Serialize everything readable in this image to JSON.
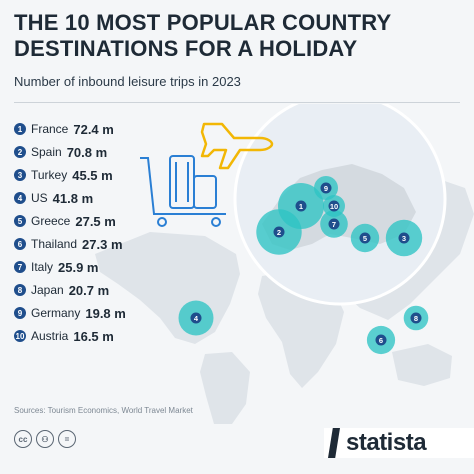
{
  "header": {
    "title": "THE 10 MOST POPULAR COUNTRY DESTINATIONS FOR A HOLIDAY",
    "subtitle": "Number of inbound leisure trips in 2023"
  },
  "footer": {
    "sources": "Sources: Tourism Economics, World Travel Market",
    "logo_text": "statista"
  },
  "colors": {
    "title": "#1e2a36",
    "badge": "#1f4e8c",
    "bubble": "#2ec4c4",
    "map_land": "#dfe4e9",
    "map_highlight_circle": "#e9eef4",
    "plane_icon": "#f2b705",
    "luggage_icon": "#2a7fd4"
  },
  "icons": [
    "airplane-icon",
    "luggage-cart-icon",
    "cc-icon",
    "attribution-icon",
    "no-derivatives-icon",
    "statista-logo"
  ],
  "chart_data": {
    "type": "bubble-map",
    "unit": "m",
    "categories": [
      "France",
      "Spain",
      "Turkey",
      "US",
      "Greece",
      "Thailand",
      "Italy",
      "Japan",
      "Germany",
      "Austria"
    ],
    "ranks": [
      "1",
      "2",
      "3",
      "4",
      "5",
      "6",
      "7",
      "8",
      "9",
      "10"
    ],
    "values": [
      72.4,
      70.8,
      45.5,
      41.8,
      27.5,
      27.3,
      25.9,
      20.7,
      19.8,
      16.5
    ],
    "value_labels": [
      "72.4 m",
      "70.8 m",
      "45.5 m",
      "41.8 m",
      "27.5 m",
      "27.3 m",
      "25.9 m",
      "20.7 m",
      "19.8 m",
      "16.5 m"
    ]
  }
}
